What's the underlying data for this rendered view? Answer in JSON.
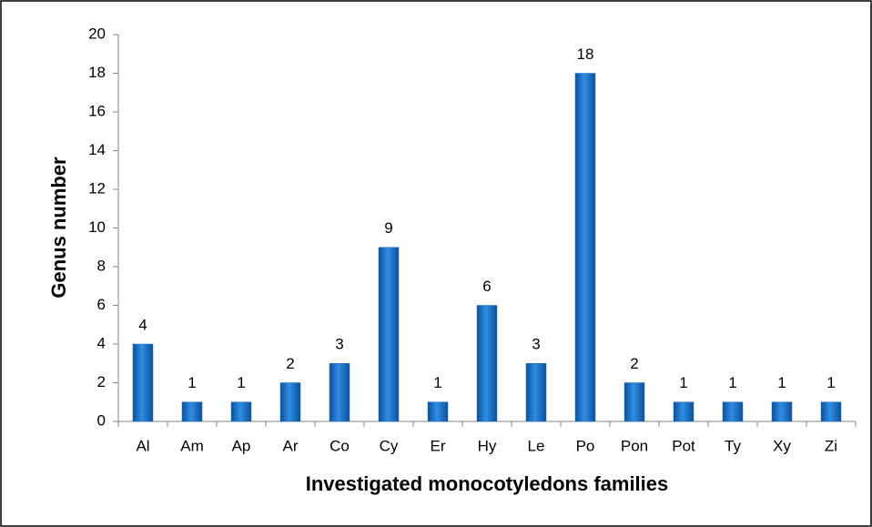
{
  "chart_data": {
    "type": "bar",
    "x_label": "Investigated monocotyledons families",
    "y_label": "Genus number",
    "categories": [
      "Al",
      "Am",
      "Ap",
      "Ar",
      "Co",
      "Cy",
      "Er",
      "Hy",
      "Le",
      "Po",
      "Pon",
      "Pot",
      "Ty",
      "Xy",
      "Zi"
    ],
    "values": [
      4,
      1,
      1,
      2,
      3,
      9,
      1,
      6,
      3,
      18,
      2,
      1,
      1,
      1,
      1
    ],
    "color": "#1b6fc4",
    "ylim": [
      0,
      20
    ],
    "yticks": [
      0,
      2,
      4,
      6,
      8,
      10,
      12,
      14,
      16,
      18,
      20
    ],
    "grid": false,
    "data_labels": true
  }
}
